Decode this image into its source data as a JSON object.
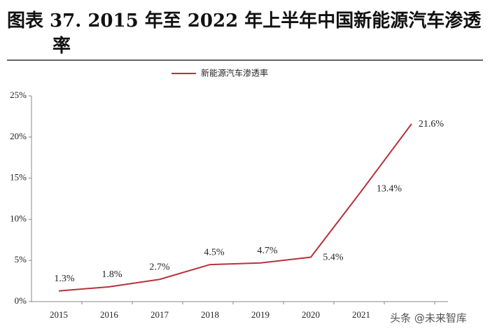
{
  "chart_data": {
    "type": "line",
    "title": "图表 37. 2015 年至 2022 年上半年中国新能源汽车渗透率",
    "categories": [
      "2015",
      "2016",
      "2017",
      "2018",
      "2019",
      "2020",
      "2021",
      null
    ],
    "series": [
      {
        "name": "新能源汽车渗透率",
        "color": "#b8323b",
        "values": [
          1.3,
          1.8,
          2.7,
          4.5,
          4.7,
          5.4,
          13.4,
          21.6
        ],
        "value_labels": [
          "1.3%",
          "1.8%",
          "2.7%",
          "4.5%",
          "4.7%",
          "5.4%",
          "13.4%",
          "21.6%"
        ]
      }
    ],
    "ylim": [
      0,
      25
    ],
    "yticks": [
      {
        "value": 0,
        "label": "0%"
      },
      {
        "value": 5,
        "label": "5%"
      },
      {
        "value": 10,
        "label": "10%"
      },
      {
        "value": 15,
        "label": "15%"
      },
      {
        "value": 20,
        "label": "20%"
      },
      {
        "value": 25,
        "label": "25%"
      }
    ],
    "grid": false,
    "watermark": "头条 @未来智库"
  }
}
